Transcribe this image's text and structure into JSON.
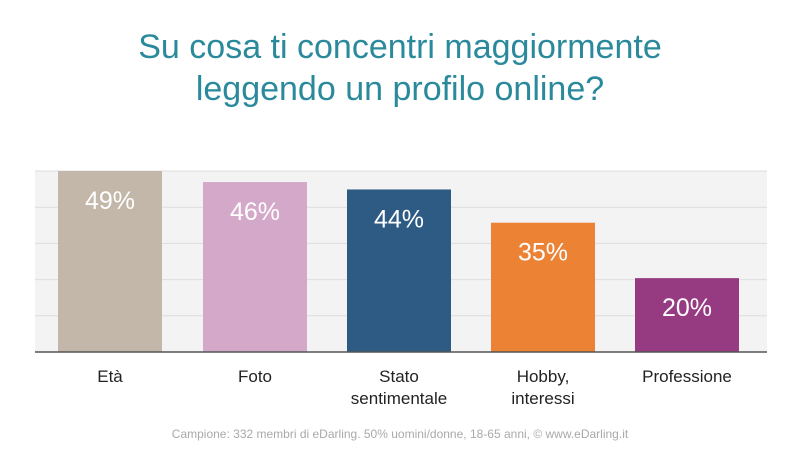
{
  "title_lines": [
    "Su cosa ti concentri maggiormente",
    "leggendo un profilo online?"
  ],
  "footnote": "Campione: 332 membri di eDarling. 50% uomini/donne, 18-65 anni, © www.eDarling.it",
  "colors": {
    "title": "#2a8a9c",
    "grid": "#dddddd",
    "plot_bg": "#f3f3f3"
  },
  "chart_data": {
    "type": "bar",
    "categories": [
      [
        "Età"
      ],
      [
        "Foto"
      ],
      [
        "Stato",
        "sentimentale"
      ],
      [
        "Hobby,",
        "interessi"
      ],
      [
        "Professione"
      ]
    ],
    "values": [
      49,
      46,
      44,
      35,
      20
    ],
    "value_labels": [
      "49%",
      "46%",
      "44%",
      "35%",
      "20%"
    ],
    "bar_colors": [
      "#c3b7aa",
      "#d4a8c9",
      "#2d5b84",
      "#ec8234",
      "#963a82"
    ],
    "ylim": [
      0,
      49
    ],
    "grid": true
  }
}
